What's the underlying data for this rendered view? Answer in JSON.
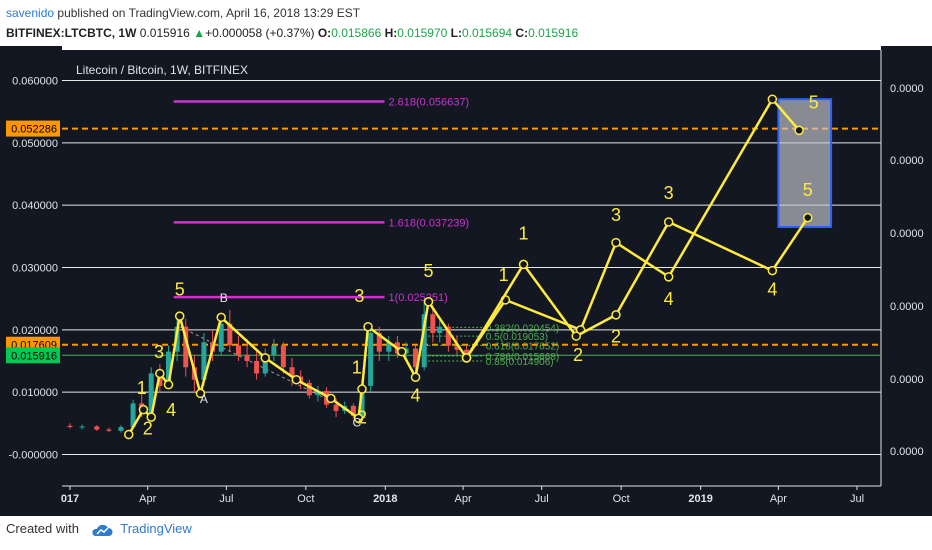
{
  "header": {
    "user": "savenido",
    "published": "published on TradingView.com, April 16, 2018 13:29 EST",
    "symbol": "BITFINEX:LTCBTC, 1W",
    "last": "0.015916",
    "change": "+0.000058 (+0.37%)",
    "o_label": "O:",
    "o": "0.015866",
    "h_label": "H:",
    "h": "0.015970",
    "l_label": "L:",
    "l": "0.015694",
    "c_label": "C:",
    "c": "0.015916"
  },
  "footer": {
    "created": "Created with",
    "brand": "TradingView"
  },
  "colors": {
    "background": "#131722",
    "grid": "#e8e8e8",
    "up": "#26a69a",
    "down": "#ef5350",
    "wave": "#ffeb3b",
    "fib": "#cc33cc",
    "orange": "#ff9800",
    "green": "#4caf50",
    "blue": "#2962ff"
  },
  "chart_data": {
    "type": "line",
    "title": "Litecoin / Bitcoin, 1W, BITFINEX",
    "xlabel": "",
    "ylabel": "",
    "x_ticks": [
      "017",
      "Apr",
      "Jul",
      "Oct",
      "2018",
      "Apr",
      "Jul",
      "Oct",
      "2019",
      "Apr",
      "Jul"
    ],
    "x_tick_dates": [
      "2017-01-01",
      "2017-04-01",
      "2017-07-01",
      "2017-10-01",
      "2018-01-01",
      "2018-04-01",
      "2018-07-01",
      "2018-10-01",
      "2019-01-01",
      "2019-04-01",
      "2019-07-01"
    ],
    "ylim": [
      -0.004,
      0.062
    ],
    "y_ticks": [
      -0.0,
      0.01,
      0.02,
      0.03,
      0.04,
      0.05,
      0.06
    ],
    "y_tick_labels": [
      "-0.000000",
      "0.010000",
      "0.020000",
      "0.030000",
      "0.040000",
      "0.050000",
      "0.060000"
    ],
    "right_axis_labels": [
      "0.0000",
      "0.0000",
      "0.0000",
      "0.0000",
      "0.0000",
      "0.0000"
    ],
    "price_labels": [
      {
        "value": 0.052286,
        "text": "0.052286",
        "color": "#ff9800"
      },
      {
        "value": 0.017609,
        "text": "0.017609",
        "color": "#ff9800"
      },
      {
        "value": 0.015916,
        "text": "0.015916",
        "color": "#00c853"
      }
    ],
    "hlines": [
      {
        "value": 0.052286,
        "color": "#ff9800",
        "style": "dashed"
      },
      {
        "value": 0.017609,
        "color": "#ff9800",
        "style": "dashed"
      },
      {
        "value": 0.015916,
        "color": "#4caf50",
        "style": "solid"
      }
    ],
    "fib_levels": [
      {
        "value": 0.056637,
        "label": "2.618(0.056637)"
      },
      {
        "value": 0.037239,
        "label": "1.618(0.037239)"
      },
      {
        "value": 0.025251,
        "label": "1(0.025251)"
      }
    ],
    "fib_from": "2017-05-01",
    "fib_to": "2017-12-31",
    "retracements": [
      {
        "value": 0.0204,
        "label": "0.382(0.020454)"
      },
      {
        "value": 0.019,
        "label": "0.5(0.019053)"
      },
      {
        "value": 0.0175,
        "label": "0.618(0.017652)"
      },
      {
        "value": 0.0158,
        "label": "0.786(0.015668)"
      },
      {
        "value": 0.015,
        "label": "0.85(0.014906)"
      }
    ],
    "retracement_from": "2018-02-15",
    "retracement_to": "2018-04-25",
    "candles": [
      {
        "d": "2017-01-01",
        "o": 0.0046,
        "h": 0.005,
        "l": 0.0042,
        "c": 0.0044
      },
      {
        "d": "2017-01-15",
        "o": 0.0044,
        "h": 0.0048,
        "l": 0.004,
        "c": 0.0045
      },
      {
        "d": "2017-02-01",
        "o": 0.0045,
        "h": 0.0047,
        "l": 0.0038,
        "c": 0.004
      },
      {
        "d": "2017-02-15",
        "o": 0.004,
        "h": 0.0043,
        "l": 0.0036,
        "c": 0.0038
      },
      {
        "d": "2017-03-01",
        "o": 0.0038,
        "h": 0.0047,
        "l": 0.0035,
        "c": 0.0044
      },
      {
        "d": "2017-03-15",
        "o": 0.0044,
        "h": 0.0088,
        "l": 0.0042,
        "c": 0.0082
      },
      {
        "d": "2017-03-25",
        "o": 0.0082,
        "h": 0.0102,
        "l": 0.006,
        "c": 0.0066
      },
      {
        "d": "2017-04-05",
        "o": 0.0066,
        "h": 0.014,
        "l": 0.006,
        "c": 0.013
      },
      {
        "d": "2017-04-15",
        "o": 0.013,
        "h": 0.0145,
        "l": 0.01,
        "c": 0.011
      },
      {
        "d": "2017-04-25",
        "o": 0.011,
        "h": 0.0175,
        "l": 0.0105,
        "c": 0.0165
      },
      {
        "d": "2017-05-05",
        "o": 0.0165,
        "h": 0.0222,
        "l": 0.015,
        "c": 0.0205
      },
      {
        "d": "2017-05-15",
        "o": 0.0205,
        "h": 0.0218,
        "l": 0.0125,
        "c": 0.014
      },
      {
        "d": "2017-05-25",
        "o": 0.014,
        "h": 0.016,
        "l": 0.01,
        "c": 0.012
      },
      {
        "d": "2017-06-05",
        "o": 0.012,
        "h": 0.0195,
        "l": 0.011,
        "c": 0.018
      },
      {
        "d": "2017-06-15",
        "o": 0.018,
        "h": 0.02,
        "l": 0.015,
        "c": 0.0165
      },
      {
        "d": "2017-06-25",
        "o": 0.0165,
        "h": 0.022,
        "l": 0.016,
        "c": 0.021
      },
      {
        "d": "2017-07-05",
        "o": 0.021,
        "h": 0.0232,
        "l": 0.0165,
        "c": 0.0175
      },
      {
        "d": "2017-07-15",
        "o": 0.0175,
        "h": 0.019,
        "l": 0.015,
        "c": 0.016
      },
      {
        "d": "2017-07-25",
        "o": 0.016,
        "h": 0.0185,
        "l": 0.014,
        "c": 0.015
      },
      {
        "d": "2017-08-05",
        "o": 0.015,
        "h": 0.0165,
        "l": 0.012,
        "c": 0.013
      },
      {
        "d": "2017-08-15",
        "o": 0.013,
        "h": 0.017,
        "l": 0.0125,
        "c": 0.016
      },
      {
        "d": "2017-08-25",
        "o": 0.016,
        "h": 0.0185,
        "l": 0.015,
        "c": 0.0175
      },
      {
        "d": "2017-09-05",
        "o": 0.0175,
        "h": 0.018,
        "l": 0.013,
        "c": 0.014
      },
      {
        "d": "2017-09-15",
        "o": 0.014,
        "h": 0.0155,
        "l": 0.011,
        "c": 0.0125
      },
      {
        "d": "2017-09-25",
        "o": 0.0125,
        "h": 0.0135,
        "l": 0.0105,
        "c": 0.0115
      },
      {
        "d": "2017-10-05",
        "o": 0.0115,
        "h": 0.012,
        "l": 0.009,
        "c": 0.0095
      },
      {
        "d": "2017-10-15",
        "o": 0.0095,
        "h": 0.011,
        "l": 0.0085,
        "c": 0.0102
      },
      {
        "d": "2017-10-25",
        "o": 0.0102,
        "h": 0.0108,
        "l": 0.0075,
        "c": 0.008
      },
      {
        "d": "2017-11-05",
        "o": 0.008,
        "h": 0.009,
        "l": 0.006,
        "c": 0.007
      },
      {
        "d": "2017-11-15",
        "o": 0.007,
        "h": 0.0085,
        "l": 0.0065,
        "c": 0.0078
      },
      {
        "d": "2017-11-25",
        "o": 0.0078,
        "h": 0.0082,
        "l": 0.0058,
        "c": 0.0062
      },
      {
        "d": "2017-12-05",
        "o": 0.0062,
        "h": 0.012,
        "l": 0.0058,
        "c": 0.011
      },
      {
        "d": "2017-12-15",
        "o": 0.011,
        "h": 0.021,
        "l": 0.01,
        "c": 0.0195
      },
      {
        "d": "2017-12-25",
        "o": 0.0195,
        "h": 0.0205,
        "l": 0.015,
        "c": 0.0165
      },
      {
        "d": "2018-01-05",
        "o": 0.0165,
        "h": 0.019,
        "l": 0.015,
        "c": 0.018
      },
      {
        "d": "2018-01-15",
        "o": 0.018,
        "h": 0.019,
        "l": 0.0155,
        "c": 0.0162
      },
      {
        "d": "2018-01-25",
        "o": 0.0162,
        "h": 0.018,
        "l": 0.015,
        "c": 0.017
      },
      {
        "d": "2018-02-05",
        "o": 0.017,
        "h": 0.0175,
        "l": 0.012,
        "c": 0.014
      },
      {
        "d": "2018-02-15",
        "o": 0.014,
        "h": 0.025,
        "l": 0.0135,
        "c": 0.0225
      },
      {
        "d": "2018-02-25",
        "o": 0.0225,
        "h": 0.024,
        "l": 0.018,
        "c": 0.0195
      },
      {
        "d": "2018-03-05",
        "o": 0.0195,
        "h": 0.0215,
        "l": 0.018,
        "c": 0.0205
      },
      {
        "d": "2018-03-15",
        "o": 0.0205,
        "h": 0.021,
        "l": 0.0165,
        "c": 0.0175
      },
      {
        "d": "2018-03-25",
        "o": 0.0175,
        "h": 0.019,
        "l": 0.016,
        "c": 0.0168
      },
      {
        "d": "2018-04-05",
        "o": 0.0168,
        "h": 0.0175,
        "l": 0.0152,
        "c": 0.0155
      },
      {
        "d": "2018-04-15",
        "o": 0.015866,
        "h": 0.01597,
        "l": 0.015694,
        "c": 0.015916
      }
    ],
    "series": [
      {
        "points": [
          {
            "d": "2017-03-10",
            "v": 0.0032
          },
          {
            "d": "2017-03-27",
            "v": 0.0072
          },
          {
            "d": "2017-04-05",
            "v": 0.006
          },
          {
            "d": "2017-04-15",
            "v": 0.013
          },
          {
            "d": "2017-04-25",
            "v": 0.0112
          },
          {
            "d": "2017-05-08",
            "v": 0.0222
          },
          {
            "d": "2017-06-01",
            "v": 0.0098
          },
          {
            "d": "2017-06-25",
            "v": 0.022
          },
          {
            "d": "2017-08-15",
            "v": 0.0155
          },
          {
            "d": "2017-09-20",
            "v": 0.012
          },
          {
            "d": "2017-10-30",
            "v": 0.009
          },
          {
            "d": "2017-12-01",
            "v": 0.0058
          },
          {
            "d": "2017-12-05",
            "v": 0.0105
          },
          {
            "d": "2017-12-12",
            "v": 0.0205
          },
          {
            "d": "2018-01-20",
            "v": 0.0165
          },
          {
            "d": "2018-02-05",
            "v": 0.0124
          },
          {
            "d": "2018-02-20",
            "v": 0.0245
          },
          {
            "d": "2018-04-05",
            "v": 0.0155
          }
        ]
      },
      {
        "points": [
          {
            "d": "2018-04-05",
            "v": 0.0155
          },
          {
            "d": "2018-05-20",
            "v": 0.0248
          },
          {
            "d": "2018-08-15",
            "v": 0.02
          },
          {
            "d": "2018-09-25",
            "v": 0.034
          },
          {
            "d": "2018-11-25",
            "v": 0.0285
          },
          {
            "d": "2019-03-25",
            "v": 0.057
          },
          {
            "d": "2019-04-25",
            "v": 0.052
          }
        ]
      },
      {
        "points": [
          {
            "d": "2018-04-05",
            "v": 0.0155
          },
          {
            "d": "2018-06-10",
            "v": 0.0305
          },
          {
            "d": "2018-08-10",
            "v": 0.019
          },
          {
            "d": "2018-09-25",
            "v": 0.0224
          },
          {
            "d": "2018-11-25",
            "v": 0.0373
          },
          {
            "d": "2019-03-25",
            "v": 0.0295
          },
          {
            "d": "2019-05-05",
            "v": 0.038
          }
        ]
      }
    ],
    "wave_labels": [
      {
        "d": "2017-03-25",
        "v": 0.0097,
        "text": "1"
      },
      {
        "d": "2017-04-01",
        "v": 0.0032,
        "text": "2"
      },
      {
        "d": "2017-04-14",
        "v": 0.0155,
        "text": "3"
      },
      {
        "d": "2017-04-28",
        "v": 0.0062,
        "text": "4"
      },
      {
        "d": "2017-05-08",
        "v": 0.0255,
        "text": "5"
      },
      {
        "d": "2017-06-05",
        "v": 0.0083,
        "text": "A"
      },
      {
        "d": "2017-06-28",
        "v": 0.0245,
        "text": "B"
      },
      {
        "d": "2017-11-29",
        "v": 0.0045,
        "text": "C"
      },
      {
        "d": "2017-11-29",
        "v": 0.013,
        "text": "1"
      },
      {
        "d": "2017-12-05",
        "v": 0.005,
        "text": "2"
      },
      {
        "d": "2017-12-02",
        "v": 0.0245,
        "text": "3"
      },
      {
        "d": "2018-02-05",
        "v": 0.0085,
        "text": "4"
      },
      {
        "d": "2018-02-20",
        "v": 0.0285,
        "text": "5"
      },
      {
        "d": "2018-05-18",
        "v": 0.0278,
        "text": "1"
      },
      {
        "d": "2018-06-10",
        "v": 0.0345,
        "text": "1"
      },
      {
        "d": "2018-08-12",
        "v": 0.015,
        "text": "2"
      },
      {
        "d": "2018-09-25",
        "v": 0.018,
        "text": "2"
      },
      {
        "d": "2018-09-25",
        "v": 0.0375,
        "text": "3"
      },
      {
        "d": "2018-11-25",
        "v": 0.041,
        "text": "3"
      },
      {
        "d": "2018-11-25",
        "v": 0.024,
        "text": "4"
      },
      {
        "d": "2019-03-25",
        "v": 0.0255,
        "text": "4"
      },
      {
        "d": "2019-05-05",
        "v": 0.0415,
        "text": "5"
      },
      {
        "d": "2019-05-12",
        "v": 0.0555,
        "text": "5"
      }
    ],
    "target_box": {
      "from": "2019-04-01",
      "to": "2019-06-01",
      "v_low": 0.0365,
      "v_high": 0.057
    },
    "grid": true,
    "legend": "none"
  }
}
